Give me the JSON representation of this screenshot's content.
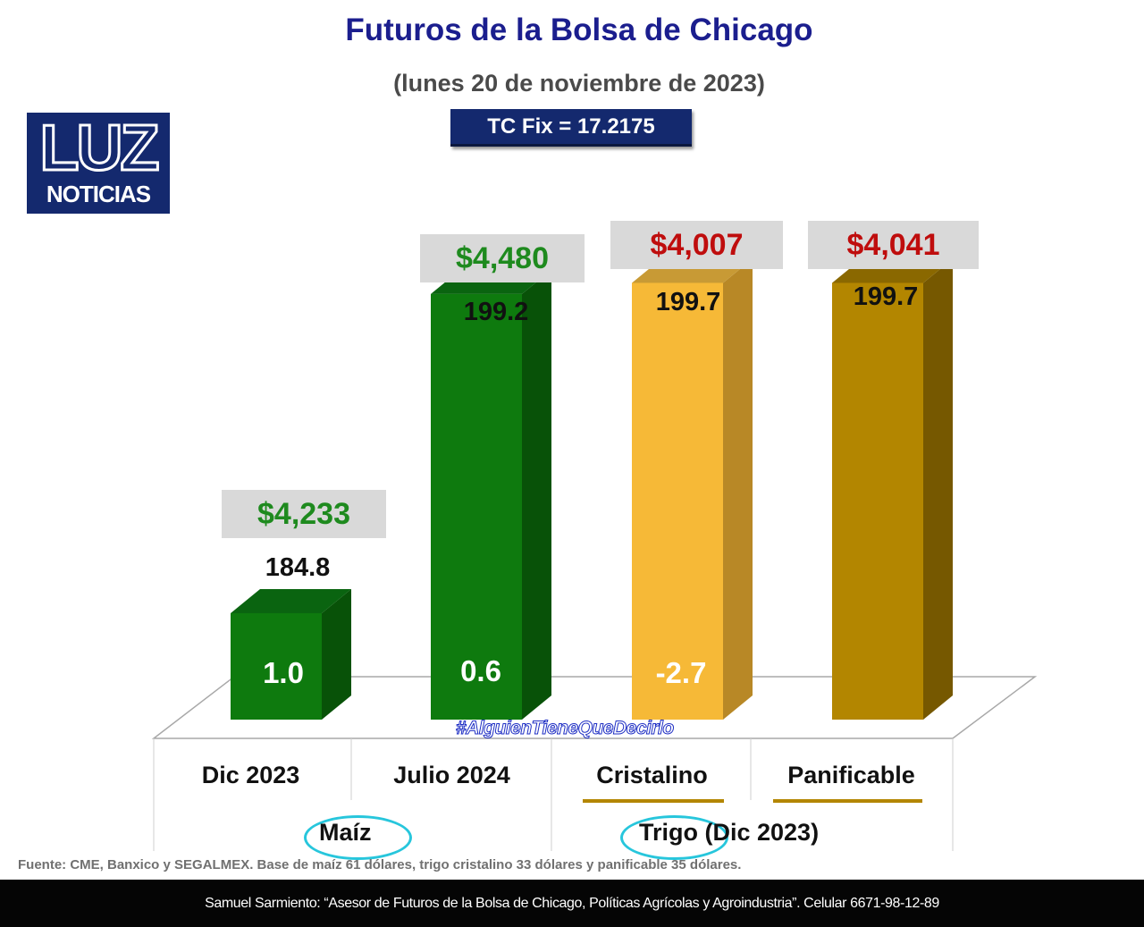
{
  "header": {
    "title": "Futuros de la Bolsa de Chicago",
    "subtitle": "(lunes 20 de noviembre de 2023)",
    "tc_fix": "TC Fix = 17.2175"
  },
  "logo": {
    "word": "LUZ",
    "sub": "NOTICIAS"
  },
  "chart_data": {
    "type": "bar",
    "title": "Futuros de la Bolsa de Chicago",
    "categories": [
      "Dic 2023",
      "Julio 2024",
      "Cristalino",
      "Panificable"
    ],
    "groups": [
      {
        "label": "Maíz",
        "categories": [
          "Dic 2023",
          "Julio 2024"
        ]
      },
      {
        "label": "Trigo (Dic 2023)",
        "categories": [
          "Cristalino",
          "Panificable"
        ]
      }
    ],
    "values": [
      184.8,
      199.2,
      199.7,
      199.7
    ],
    "value_labels": [
      "184.8",
      "199.2",
      "199.7",
      "199.7"
    ],
    "prices_mxn": [
      "$4,233",
      "$4,480",
      "$4,007",
      "$4,041"
    ],
    "changes": [
      "1.0",
      "0.6",
      "-2.7",
      ""
    ],
    "colors": {
      "front": [
        "#0e7a0e",
        "#0e7a0e",
        "#f6b937",
        "#b38600"
      ],
      "side": [
        "#085208",
        "#085208",
        "#b88826",
        "#765800"
      ],
      "top": [
        "#0a6410",
        "#0a6410",
        "#c89a35",
        "#8a6800"
      ],
      "price_text": [
        "#1e8a1e",
        "#1e8a1e",
        "#bf0d0d",
        "#bf0d0d"
      ]
    },
    "baseline_value": 180,
    "ylim": [
      180,
      200
    ]
  },
  "hashtag": "#AlguienTieneQueDecirlo",
  "source": "Fuente: CME, Banxico y SEGALMEX. Base de maíz 61 dólares, trigo cristalino 33 dólares y panificable 35 dólares.",
  "footer": "Samuel Sarmiento: “Asesor de Futuros de la Bolsa de Chicago, Políticas Agrícolas y Agroindustria”. Celular 6671-98-12-89"
}
